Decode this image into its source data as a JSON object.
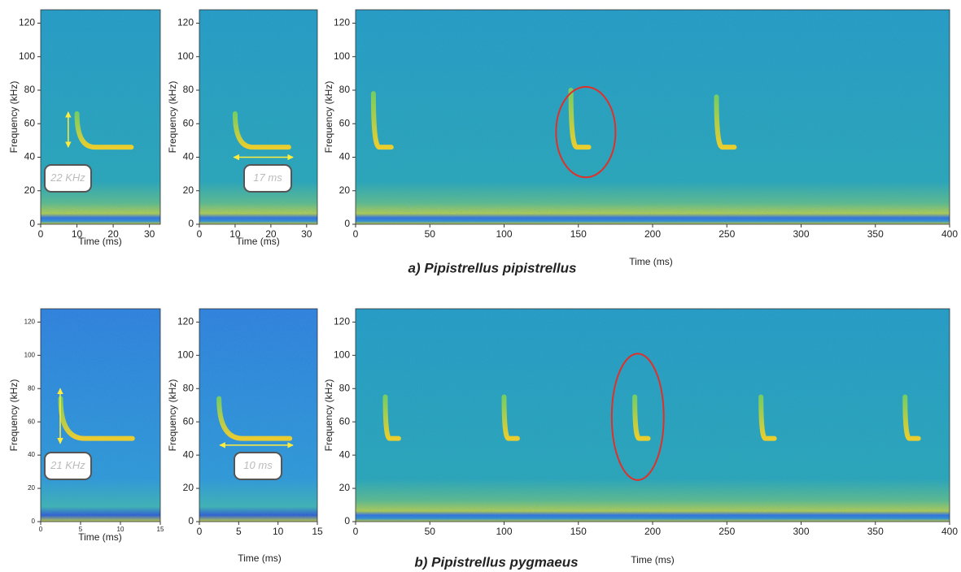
{
  "captions": [
    "a) Pipistrellus pipistrellus",
    "b) Pipistrellus pygmaeus"
  ],
  "chart_data": [
    {
      "type": "spectrogram",
      "xlabel": "Time (ms)",
      "ylabel": "Frequency (kHz)",
      "xlim": [
        0,
        33
      ],
      "xticks": [
        0,
        10,
        20,
        30
      ],
      "ylim": [
        0,
        128
      ],
      "yticks": [
        0,
        20,
        40,
        60,
        80,
        100,
        120
      ],
      "calls": [
        {
          "t": 10,
          "f_start": 66,
          "f_end": 46,
          "duration": 5
        }
      ],
      "annotation": {
        "text": "22 KHz",
        "arrow": [
          7.6,
          46,
          7.6,
          67
        ]
      }
    },
    {
      "type": "spectrogram",
      "xlabel": "Time (ms)",
      "ylabel": "Frequency (kHz)",
      "xlim": [
        0,
        33
      ],
      "xticks": [
        0,
        10,
        20,
        30
      ],
      "ylim": [
        0,
        128
      ],
      "yticks": [
        0,
        20,
        40,
        60,
        80,
        100,
        120
      ],
      "calls": [
        {
          "t": 10,
          "f_start": 66,
          "f_end": 46,
          "duration": 5
        }
      ],
      "annotation": {
        "text": "17 ms",
        "arrow": [
          9.6,
          40,
          26.2,
          40
        ]
      }
    },
    {
      "type": "spectrogram",
      "xlabel": "Time (ms)",
      "ylabel": "Frequency (kHz)",
      "xlim": [
        0,
        400
      ],
      "xticks": [
        0,
        50,
        100,
        150,
        200,
        250,
        300,
        350,
        400
      ],
      "ylim": [
        0,
        128
      ],
      "yticks": [
        0,
        20,
        40,
        60,
        80,
        100,
        120
      ],
      "calls": [
        {
          "t": 12,
          "f_start": 78,
          "f_end": 46,
          "duration": 4
        },
        {
          "t": 145,
          "f_start": 80,
          "f_end": 46,
          "duration": 4
        },
        {
          "t": 243,
          "f_start": 76,
          "f_end": 46,
          "duration": 4
        }
      ],
      "highlight": {
        "x": 155,
        "y": 55,
        "rx": 20,
        "ry": 27
      }
    },
    {
      "type": "spectrogram",
      "xlabel": "Time (ms)",
      "ylabel": "Frequency (kHz)",
      "xlim": [
        0,
        15
      ],
      "xticks": [
        0,
        5,
        10,
        15
      ],
      "ylim": [
        0,
        128
      ],
      "yticks": [
        0,
        20,
        40,
        60,
        80,
        100,
        120
      ],
      "calls": [
        {
          "t": 2.5,
          "f_start": 74,
          "f_end": 50,
          "duration": 3
        }
      ],
      "annotation": {
        "text": "21 KHz",
        "arrow": [
          2.45,
          47,
          2.45,
          80
        ]
      }
    },
    {
      "type": "spectrogram",
      "xlabel": "Time (ms)",
      "ylabel": "Frequency (kHz)",
      "xlim": [
        0,
        15
      ],
      "xticks": [
        0,
        5,
        10,
        15
      ],
      "ylim": [
        0,
        128
      ],
      "yticks": [
        0,
        20,
        40,
        60,
        80,
        100,
        120
      ],
      "calls": [
        {
          "t": 2.5,
          "f_start": 74,
          "f_end": 50,
          "duration": 3
        }
      ],
      "annotation": {
        "text": "10 ms",
        "arrow": [
          2.6,
          46,
          11.9,
          46
        ]
      }
    },
    {
      "type": "spectrogram",
      "xlabel": "Time (ms)",
      "ylabel": "Frequency (kHz)",
      "xlim": [
        0,
        400
      ],
      "xticks": [
        0,
        50,
        100,
        150,
        200,
        250,
        300,
        350,
        400
      ],
      "ylim": [
        0,
        128
      ],
      "yticks": [
        0,
        20,
        40,
        60,
        80,
        100,
        120
      ],
      "calls": [
        {
          "t": 20,
          "f_start": 75,
          "f_end": 50,
          "duration": 3
        },
        {
          "t": 100,
          "f_start": 75,
          "f_end": 50,
          "duration": 3
        },
        {
          "t": 188,
          "f_start": 75,
          "f_end": 50,
          "duration": 3
        },
        {
          "t": 273,
          "f_start": 75,
          "f_end": 50,
          "duration": 3
        },
        {
          "t": 370,
          "f_start": 75,
          "f_end": 50,
          "duration": 3
        }
      ],
      "highlight": {
        "x": 190,
        "y": 63,
        "rx": 17.5,
        "ry": 38
      }
    }
  ]
}
